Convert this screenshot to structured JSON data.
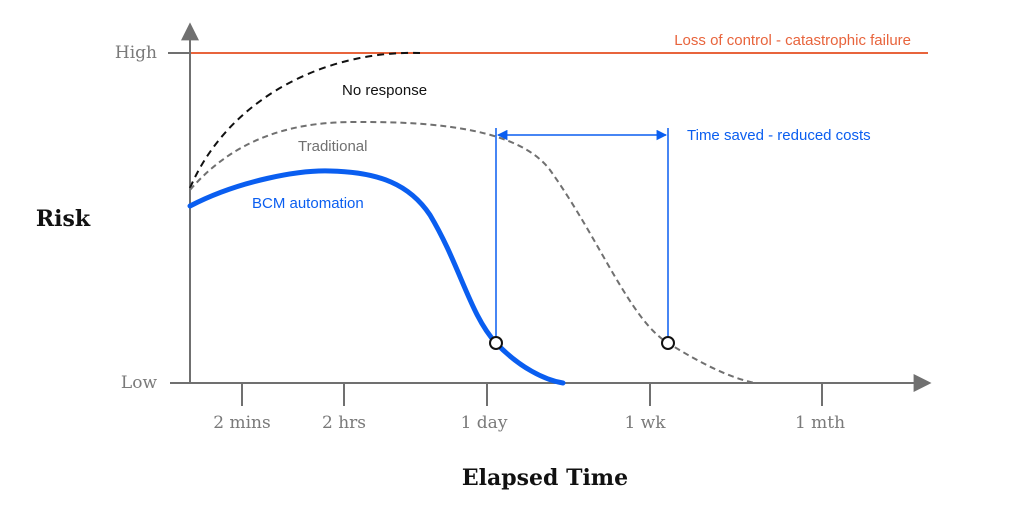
{
  "axes": {
    "y_title": "Risk",
    "x_title": "Elapsed Time",
    "y_high": "High",
    "y_low": "Low",
    "x_ticks": [
      "2 mins",
      "2 hrs",
      "1 day",
      "1 wk",
      "1 mth"
    ]
  },
  "labels": {
    "ceiling": "Loss of control - catastrophic failure",
    "no_response": "No response",
    "traditional": "Traditional",
    "bcm": "BCM automation",
    "time_saved": "Time saved - reduced costs"
  },
  "colors": {
    "ceiling": "#e8643c",
    "no_response": "#111111",
    "traditional": "#707070",
    "bcm": "#0a5ef0",
    "axis": "#707070"
  }
}
